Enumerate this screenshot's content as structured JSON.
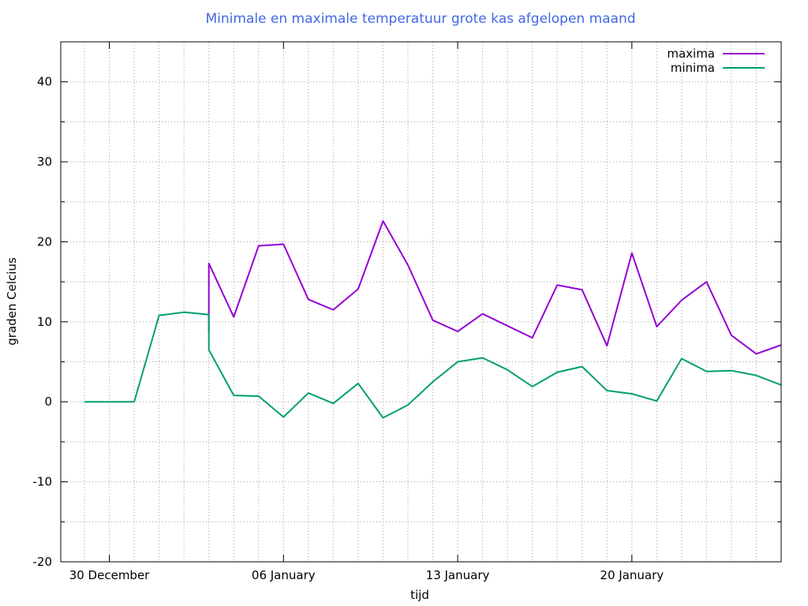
{
  "chart_data": {
    "type": "line",
    "title": "Minimale en maximale temperatuur grote kas afgelopen maand",
    "xlabel": "tijd",
    "ylabel": "graden Celcius",
    "ylim": [
      -20,
      45
    ],
    "xlim": [
      "2023-12-29",
      "2024-01-26"
    ],
    "yticks": [
      -20,
      -10,
      0,
      10,
      20,
      30,
      40
    ],
    "xticks": [
      {
        "date": "2023-12-30",
        "label": "30 December"
      },
      {
        "date": "2024-01-06",
        "label": "06 January"
      },
      {
        "date": "2024-01-13",
        "label": "13 January"
      },
      {
        "date": "2024-01-20",
        "label": "20 January"
      }
    ],
    "grid": true,
    "legend_position": "top-right",
    "series": [
      {
        "name": "maxima",
        "color": "#9400d3",
        "points": [
          [
            "2024-01-03",
            8.7
          ],
          [
            "2024-01-03",
            17.3
          ],
          [
            "2024-01-04",
            10.6
          ],
          [
            "2024-01-05",
            19.5
          ],
          [
            "2024-01-06",
            19.7
          ],
          [
            "2024-01-07",
            12.8
          ],
          [
            "2024-01-08",
            11.5
          ],
          [
            "2024-01-09",
            14.1
          ],
          [
            "2024-01-10",
            22.6
          ],
          [
            "2024-01-11",
            17.1
          ],
          [
            "2024-01-12",
            10.2
          ],
          [
            "2024-01-13",
            8.8
          ],
          [
            "2024-01-14",
            11.0
          ],
          [
            "2024-01-15",
            9.5
          ],
          [
            "2024-01-16",
            8.0
          ],
          [
            "2024-01-17",
            14.6
          ],
          [
            "2024-01-18",
            14.0
          ],
          [
            "2024-01-19",
            7.0
          ],
          [
            "2024-01-20",
            18.6
          ],
          [
            "2024-01-21",
            9.4
          ],
          [
            "2024-01-22",
            12.7
          ],
          [
            "2024-01-23",
            15.0
          ],
          [
            "2024-01-24",
            8.3
          ],
          [
            "2024-01-25",
            6.0
          ],
          [
            "2024-01-26",
            7.1
          ]
        ]
      },
      {
        "name": "minima",
        "color": "#009e73",
        "points": [
          [
            "2023-12-29",
            0.0
          ],
          [
            "2023-12-30",
            0.0
          ],
          [
            "2023-12-31",
            0.0
          ],
          [
            "2024-01-01",
            10.8
          ],
          [
            "2024-01-02",
            11.2
          ],
          [
            "2024-01-03",
            10.9
          ],
          [
            "2024-01-03",
            8.7
          ],
          [
            "2024-01-03",
            6.5
          ],
          [
            "2024-01-04",
            0.8
          ],
          [
            "2024-01-05",
            0.7
          ],
          [
            "2024-01-06",
            -1.9
          ],
          [
            "2024-01-07",
            1.1
          ],
          [
            "2024-01-08",
            -0.2
          ],
          [
            "2024-01-09",
            2.3
          ],
          [
            "2024-01-10",
            -2.0
          ],
          [
            "2024-01-11",
            -0.4
          ],
          [
            "2024-01-12",
            2.5
          ],
          [
            "2024-01-13",
            5.0
          ],
          [
            "2024-01-14",
            5.5
          ],
          [
            "2024-01-15",
            4.0
          ],
          [
            "2024-01-16",
            1.9
          ],
          [
            "2024-01-17",
            3.7
          ],
          [
            "2024-01-18",
            4.4
          ],
          [
            "2024-01-19",
            1.4
          ],
          [
            "2024-01-20",
            1.0
          ],
          [
            "2024-01-21",
            0.1
          ],
          [
            "2024-01-22",
            5.4
          ],
          [
            "2024-01-23",
            3.8
          ],
          [
            "2024-01-24",
            3.9
          ],
          [
            "2024-01-25",
            3.3
          ],
          [
            "2024-01-26",
            2.1
          ]
        ]
      }
    ]
  }
}
